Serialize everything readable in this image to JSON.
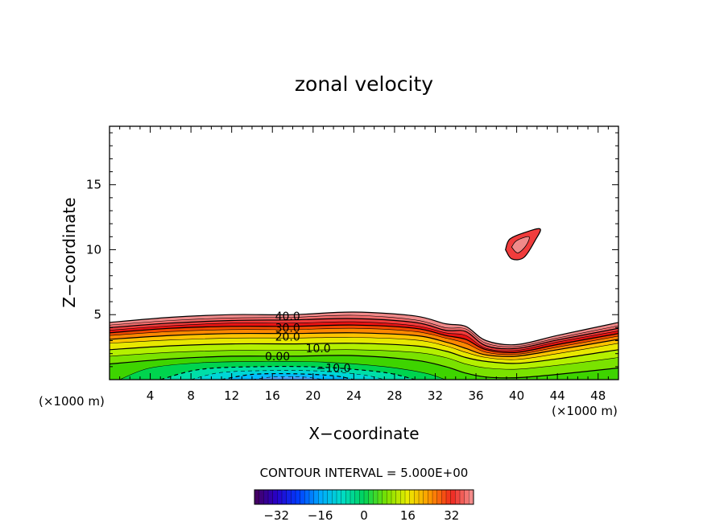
{
  "chart_data": {
    "type": "contour",
    "title": "zonal velocity",
    "xlabel": "X−coordinate",
    "ylabel": "Z−coordinate",
    "x_unit_left": "(×1000 m)",
    "x_unit_right": "(×1000 m)",
    "xlim": [
      0,
      50
    ],
    "ylim": [
      0,
      19.5
    ],
    "x_ticks": [
      4,
      8,
      12,
      16,
      20,
      24,
      28,
      32,
      36,
      40,
      44,
      48
    ],
    "y_ticks": [
      5,
      10,
      15
    ],
    "contour_interval_text": "CONTOUR INTERVAL = 5.000E+00",
    "contour_labels": [
      {
        "text": "40.0",
        "x": 17.5,
        "y": 4.9
      },
      {
        "text": "30.0",
        "x": 17.5,
        "y": 4.0
      },
      {
        "text": "20.0",
        "x": 17.5,
        "y": 3.3
      },
      {
        "text": "10.0",
        "x": 20.5,
        "y": 2.4
      },
      {
        "text": "0.00",
        "x": 16.5,
        "y": 1.8
      },
      {
        "text": "−10.0",
        "x": 22.0,
        "y": 0.9
      }
    ],
    "upper_jet_center": {
      "x": 40.3,
      "y": 10.2
    },
    "colorbar": {
      "range": [
        -40,
        40
      ],
      "tick_values": [
        -32,
        -16,
        0,
        16,
        32
      ],
      "tick_labels": [
        "−32",
        "−16",
        "0",
        "16",
        "32"
      ]
    },
    "colors": {
      "c60": "#f08a8a",
      "c55": "#f26c6c",
      "c50": "#f03c3c",
      "c45": "#ea1212",
      "c40": "#f24a00",
      "c35": "#ff8800",
      "c30": "#ffc400",
      "c25": "#e8e800",
      "c20": "#b4f000",
      "c15": "#7ae200",
      "c10": "#3ed400",
      "c5": "#00d44e",
      "c0": "#00dea8",
      "cm5": "#00d6d6",
      "cm10": "#00bcff",
      "cm15": "#4aa6ff"
    }
  }
}
